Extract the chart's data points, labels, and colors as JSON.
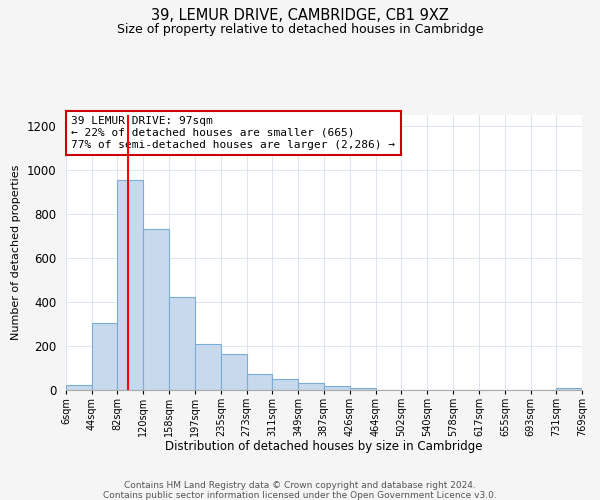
{
  "title": "39, LEMUR DRIVE, CAMBRIDGE, CB1 9XZ",
  "subtitle": "Size of property relative to detached houses in Cambridge",
  "xlabel": "Distribution of detached houses by size in Cambridge",
  "ylabel": "Number of detached properties",
  "bar_color": "#c8d9ee",
  "bar_edge_color": "#7aadd4",
  "red_line_x": 97,
  "annotation_title": "39 LEMUR DRIVE: 97sqm",
  "annotation_line1": "← 22% of detached houses are smaller (665)",
  "annotation_line2": "77% of semi-detached houses are larger (2,286) →",
  "annotation_box_color": "#ffffff",
  "annotation_box_edge": "#cc0000",
  "footnote1": "Contains HM Land Registry data © Crown copyright and database right 2024.",
  "footnote2": "Contains public sector information licensed under the Open Government Licence v3.0.",
  "bin_edges": [
    6,
    44,
    82,
    120,
    158,
    197,
    235,
    273,
    311,
    349,
    387,
    426,
    464,
    502,
    540,
    578,
    617,
    655,
    693,
    731,
    769
  ],
  "bin_labels": [
    "6sqm",
    "44sqm",
    "82sqm",
    "120sqm",
    "158sqm",
    "197sqm",
    "235sqm",
    "273sqm",
    "311sqm",
    "349sqm",
    "387sqm",
    "426sqm",
    "464sqm",
    "502sqm",
    "540sqm",
    "578sqm",
    "617sqm",
    "655sqm",
    "693sqm",
    "731sqm",
    "769sqm"
  ],
  "bar_heights": [
    22,
    305,
    955,
    730,
    425,
    210,
    165,
    75,
    48,
    33,
    18,
    8,
    0,
    0,
    0,
    0,
    0,
    0,
    0,
    10
  ],
  "ylim": [
    0,
    1250
  ],
  "yticks": [
    0,
    200,
    400,
    600,
    800,
    1000,
    1200
  ],
  "background_color": "#f5f5f5",
  "plot_bg_color": "#ffffff",
  "grid_color": "#dde5f0"
}
